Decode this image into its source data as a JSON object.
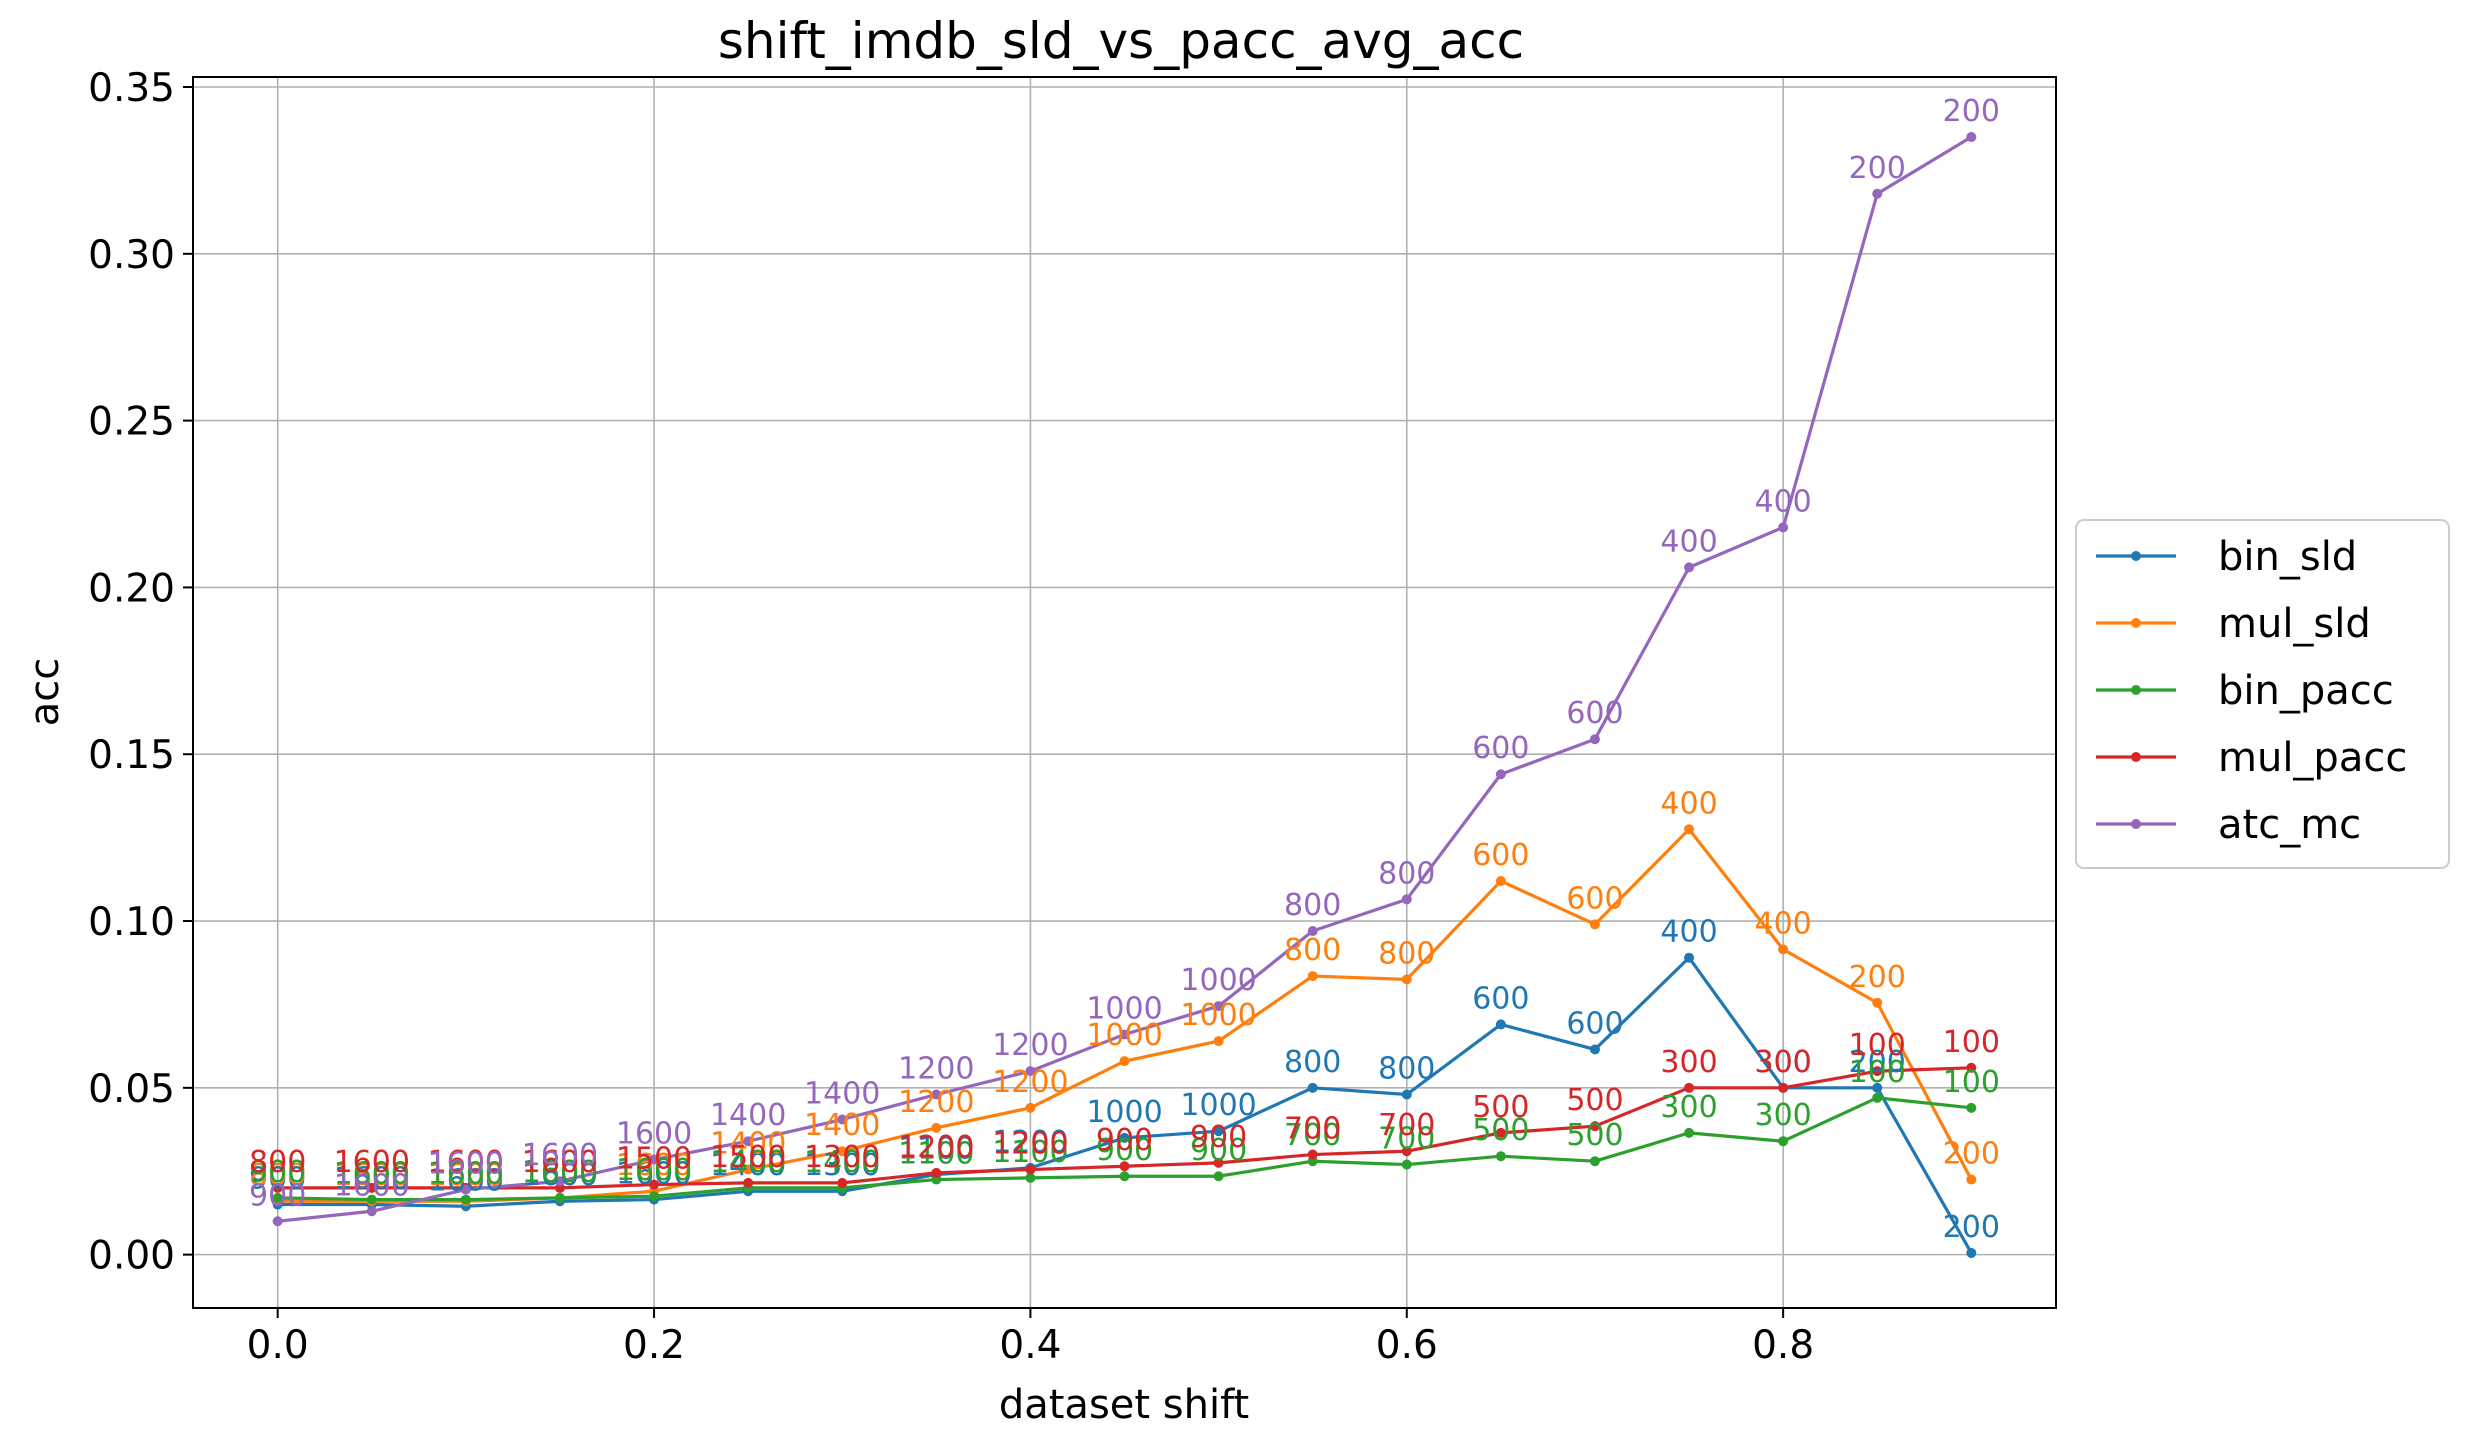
{
  "chart_data": {
    "type": "line",
    "title": "shift_imdb_sld_vs_pacc_avg_acc",
    "xlabel": "dataset shift",
    "ylabel": "acc",
    "xlim": [
      -0.045,
      0.945
    ],
    "ylim": [
      -0.016,
      0.353
    ],
    "xticks": [
      0.0,
      0.2,
      0.4,
      0.6,
      0.8
    ],
    "xtick_labels": [
      "0.0",
      "0.2",
      "0.4",
      "0.6",
      "0.8"
    ],
    "yticks": [
      0.0,
      0.05,
      0.1,
      0.15,
      0.2,
      0.25,
      0.3,
      0.35
    ],
    "ytick_labels": [
      "0.00",
      "0.05",
      "0.10",
      "0.15",
      "0.20",
      "0.25",
      "0.30",
      "0.35"
    ],
    "grid": true,
    "legend_position": "outside-right",
    "x": [
      0.0,
      0.05,
      0.1,
      0.15,
      0.2,
      0.25,
      0.3,
      0.35,
      0.4,
      0.45,
      0.5,
      0.55,
      0.6,
      0.65,
      0.7,
      0.75,
      0.8,
      0.85,
      0.9
    ],
    "point_labels": [
      "800",
      "1600",
      "1600",
      "1600",
      "1600",
      "1400",
      "1400",
      "1200",
      "1200",
      "1000",
      "1000",
      "800",
      "800",
      "600",
      "600",
      "400",
      "400",
      "200",
      "200"
    ],
    "series": [
      {
        "name": "bin_sld",
        "color": "#1f77b4",
        "values": [
          0.015,
          0.015,
          0.0145,
          0.016,
          0.0165,
          0.019,
          0.019,
          0.024,
          0.026,
          0.035,
          0.037,
          0.05,
          0.048,
          0.069,
          0.0615,
          0.089,
          0.05,
          0.05,
          0.0005
        ],
        "labels": [
          "900",
          "1600",
          "1600",
          "1600",
          "1600",
          "1400",
          "1300",
          "1100",
          "1200",
          "1000",
          "1000",
          "800",
          "800",
          "600",
          "600",
          "400",
          "300",
          "200",
          "200"
        ]
      },
      {
        "name": "mul_sld",
        "color": "#ff7f0e",
        "values": [
          0.016,
          0.016,
          0.016,
          0.017,
          0.019,
          0.0255,
          0.031,
          0.038,
          0.044,
          0.058,
          0.064,
          0.0835,
          0.0825,
          0.112,
          0.099,
          0.1275,
          0.0915,
          0.0755,
          0.0225
        ],
        "labels": [
          "800",
          "1600",
          "1600",
          "1600",
          "1600",
          "1400",
          "1400",
          "1200",
          "1200",
          "1000",
          "1000",
          "800",
          "800",
          "600",
          "600",
          "400",
          "400",
          "200",
          "200"
        ]
      },
      {
        "name": "bin_pacc",
        "color": "#2ca02c",
        "values": [
          0.017,
          0.0165,
          0.0165,
          0.017,
          0.0175,
          0.02,
          0.02,
          0.0225,
          0.023,
          0.0235,
          0.0235,
          0.028,
          0.027,
          0.0295,
          0.028,
          0.0365,
          0.034,
          0.047,
          0.044
        ],
        "labels": [
          "900",
          "1600",
          "1600",
          "1600",
          "1600",
          "1400",
          "1400",
          "1100",
          "1100",
          "900",
          "900",
          "700",
          "700",
          "500",
          "500",
          "300",
          "300",
          "100",
          "100"
        ]
      },
      {
        "name": "mul_pacc",
        "color": "#d62728",
        "values": [
          0.02,
          0.02,
          0.02,
          0.02,
          0.021,
          0.0215,
          0.0215,
          0.0245,
          0.0255,
          0.0265,
          0.0275,
          0.03,
          0.031,
          0.0365,
          0.0385,
          0.05,
          0.05,
          0.055,
          0.056
        ],
        "labels": [
          "800",
          "1600",
          "1600",
          "1600",
          "1500",
          "1500",
          "1300",
          "1200",
          "1200",
          "900",
          "900",
          "700",
          "700",
          "500",
          "500",
          "300",
          "300",
          "100",
          "100"
        ]
      },
      {
        "name": "atc_mc",
        "color": "#9467bd",
        "values": [
          0.01,
          0.013,
          0.0195,
          0.022,
          0.0285,
          0.034,
          0.0405,
          0.048,
          0.055,
          0.066,
          0.0745,
          0.097,
          0.1065,
          0.144,
          0.1545,
          0.206,
          0.218,
          0.318,
          0.335
        ],
        "labels": [
          "900",
          "1600",
          "1600",
          "1600",
          "1600",
          "1400",
          "1400",
          "1200",
          "1200",
          "1000",
          "1000",
          "800",
          "800",
          "600",
          "600",
          "400",
          "400",
          "200",
          "200"
        ]
      }
    ]
  }
}
